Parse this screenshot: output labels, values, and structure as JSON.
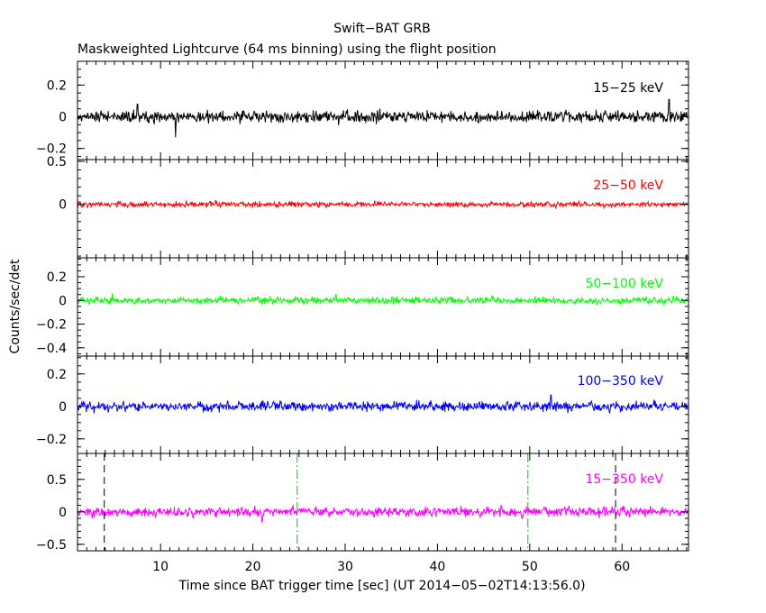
{
  "chart_data": {
    "type": "line",
    "title": "Swift−BAT GRB",
    "subtitle": "Maskweighted Lightcurve (64 ms binning) using the flight position",
    "xlabel": "Time since BAT trigger time [sec] (UT 2014−05−02T14:13:56.0)",
    "ylabel": "Counts/sec/det",
    "xlim": [
      1.0,
      67.2
    ],
    "x_ticks": [
      10,
      20,
      30,
      40,
      50,
      60
    ],
    "grid": false,
    "noise_seed": 20140502,
    "panels": [
      {
        "band": "15−25 keV",
        "color": "#000000",
        "ylim": [
          -0.27,
          0.35
        ],
        "y_ticks": [
          {
            "v": 0.2,
            "l": "0.2"
          },
          {
            "v": 0,
            "l": "0"
          },
          {
            "v": -0.2,
            "l": "−0.2"
          }
        ],
        "series": {
          "noise_amplitude": 0.034,
          "spikes": [
            [
              7.5,
              0.08
            ],
            [
              11.6,
              -0.13
            ],
            [
              65.1,
              0.11
            ]
          ]
        }
      },
      {
        "band": "25−50 keV",
        "color": "#ff0000",
        "ylim": [
          -0.62,
          0.52
        ],
        "y_ticks": [
          {
            "v": 0.5,
            "l": "0.5"
          },
          {
            "v": 0,
            "l": "0"
          }
        ],
        "series": {
          "noise_amplitude": 0.028,
          "spikes": [
            [
              16.0,
              0.05
            ]
          ]
        }
      },
      {
        "band": "50−100 keV",
        "color": "#00ff00",
        "ylim": [
          -0.47,
          0.36
        ],
        "y_ticks": [
          {
            "v": 0.2,
            "l": "0.2"
          },
          {
            "v": 0,
            "l": "0"
          },
          {
            "v": -0.2,
            "l": "−0.2"
          },
          {
            "v": -0.4,
            "l": "−0.4"
          }
        ],
        "series": {
          "noise_amplitude": 0.026,
          "spikes": [
            [
              4.8,
              0.06
            ],
            [
              29.0,
              0.05
            ]
          ]
        }
      },
      {
        "band": "100−350 keV",
        "color": "#0000ff",
        "ylim": [
          -0.29,
          0.31
        ],
        "y_ticks": [
          {
            "v": 0.2,
            "l": "0.2"
          },
          {
            "v": 0,
            "l": "0"
          },
          {
            "v": -0.2,
            "l": "−0.2"
          }
        ],
        "series": {
          "noise_amplitude": 0.028,
          "spikes": [
            [
              52.3,
              0.07
            ]
          ]
        }
      },
      {
        "band": "15−350 keV",
        "color": "#ff00ff",
        "ylim": [
          -0.6,
          0.9
        ],
        "y_ticks": [
          {
            "v": 0.5,
            "l": "0.5"
          },
          {
            "v": 0,
            "l": "0"
          },
          {
            "v": -0.5,
            "l": "−0.5"
          }
        ],
        "series": {
          "noise_amplitude": 0.065,
          "spikes": [
            [
              21.0,
              -0.15
            ]
          ]
        },
        "markers": [
          {
            "x": 3.9,
            "color": "#000000",
            "dash": "dash"
          },
          {
            "x": 24.8,
            "color": "#00cc00",
            "dash": "dashdot"
          },
          {
            "x": 49.8,
            "color": "#00cc00",
            "dash": "dashdot"
          },
          {
            "x": 59.3,
            "color": "#000000",
            "dash": "dash"
          }
        ]
      }
    ]
  }
}
